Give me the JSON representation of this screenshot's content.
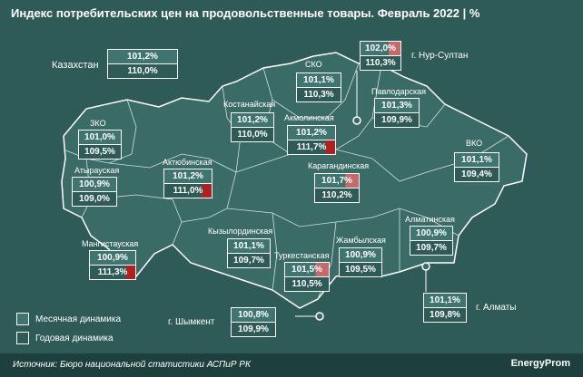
{
  "title": "Индекс потребительских цен на продовольственные товары. Февраль 2022",
  "unit": "%",
  "legend": {
    "monthly": "Месячная динамика",
    "annual": "Годовая динамика"
  },
  "source": "Источник: Бюро национальной статистики АСПиР РК",
  "logo": "EnergyProm",
  "kazakhstan": {
    "name": "Казахстан",
    "monthly": "101,2%",
    "annual": "110,0%"
  },
  "regions": [
    {
      "key": "sko",
      "name": "СКО",
      "monthly": "101,1%",
      "annual": "110,3%"
    },
    {
      "key": "nur",
      "name": "г. Нур-Султан",
      "monthly": "102,0%",
      "annual": "110,3%"
    },
    {
      "key": "pav",
      "name": "Павлодарская",
      "monthly": "101,3%",
      "annual": "109,9%"
    },
    {
      "key": "kost",
      "name": "Костанайская",
      "monthly": "101,2%",
      "annual": "110,0%"
    },
    {
      "key": "akm",
      "name": "Акмолинская",
      "monthly": "101,2%",
      "annual": "111,7%"
    },
    {
      "key": "zko",
      "name": "ЗКО",
      "monthly": "101,0%",
      "annual": "109,5%"
    },
    {
      "key": "vko",
      "name": "ВКО",
      "monthly": "101,1%",
      "annual": "109,4%"
    },
    {
      "key": "atyr",
      "name": "Атырауская",
      "monthly": "100,9%",
      "annual": "109,0%"
    },
    {
      "key": "akt",
      "name": "Актюбинская",
      "monthly": "101,2%",
      "annual": "111,0%"
    },
    {
      "key": "kar",
      "name": "Карагандинская",
      "monthly": "101,7%",
      "annual": "110,2%"
    },
    {
      "key": "alm",
      "name": "Алматинская",
      "monthly": "100,9%",
      "annual": "109,7%"
    },
    {
      "key": "kyz",
      "name": "Кызылординская",
      "monthly": "101,1%",
      "annual": "109,7%"
    },
    {
      "key": "mang",
      "name": "Мангистауская",
      "monthly": "100,9%",
      "annual": "111,3%"
    },
    {
      "key": "turk",
      "name": "Туркестанская",
      "monthly": "101,5%",
      "annual": "110,5%"
    },
    {
      "key": "zham",
      "name": "Жамбылская",
      "monthly": "100,9%",
      "annual": "109,5%"
    },
    {
      "key": "almaty",
      "name": "г. Алматы",
      "monthly": "101,1%",
      "annual": "109,8%"
    },
    {
      "key": "shym",
      "name": "г. Шымкент",
      "monthly": "100,8%",
      "annual": "109,9%"
    }
  ]
}
